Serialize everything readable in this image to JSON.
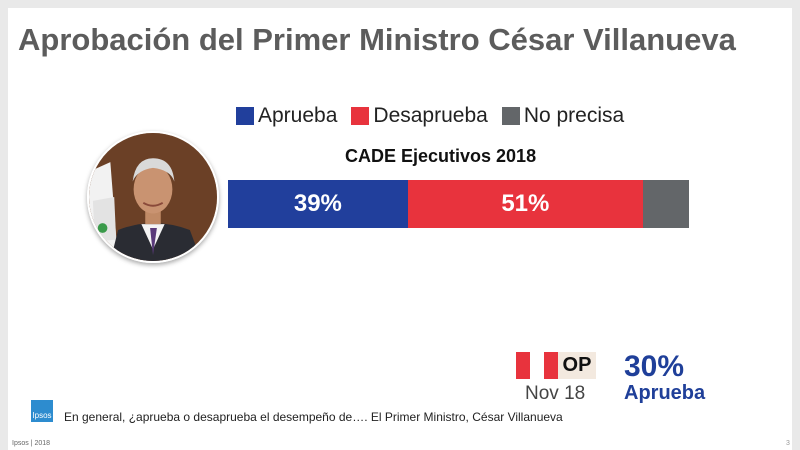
{
  "title": "Aprobación del Primer Ministro César Villanueva",
  "colors": {
    "aprueba": "#213f9c",
    "desaprueba": "#e8333d",
    "no_precisa": "#636669",
    "op_value": "#1f3f99",
    "flag_red": "#e8333d",
    "flag_white": "#ffffff"
  },
  "chart_data": {
    "type": "bar",
    "orientation": "horizontal-stacked",
    "title": "CADE Ejecutivos 2018",
    "categories": [
      "CADE Ejecutivos 2018"
    ],
    "series": [
      {
        "name": "Aprueba",
        "values": [
          39
        ],
        "label": "39%"
      },
      {
        "name": "Desaprueba",
        "values": [
          51
        ],
        "label": "51%"
      },
      {
        "name": "No precisa",
        "values": [
          10
        ],
        "label": ""
      }
    ],
    "legend_position": "top",
    "grid": false
  },
  "legend": {
    "aprueba": "Aprueba",
    "desaprueba": "Desaprueba",
    "no_precisa": "No precisa"
  },
  "op_comparison": {
    "tag": "OP",
    "date": "Nov 18",
    "value": "30%",
    "label": "Aprueba"
  },
  "question": "En general, ¿aprueba o desaprueba el desempeño de…. El Primer Ministro, César Villanueva",
  "logo_text": "Ipsos",
  "footer": "Ipsos | 2018",
  "page_number": "3"
}
